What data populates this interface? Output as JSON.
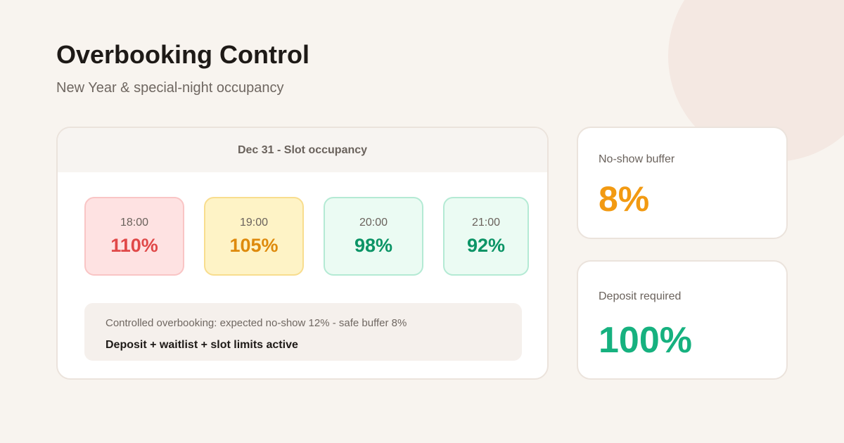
{
  "header": {
    "title": "Overbooking Control",
    "subtitle": "New Year & special-night occupancy"
  },
  "occupancy": {
    "title": "Dec 31 - Slot occupancy",
    "slots": [
      {
        "time": "18:00",
        "value": "110%",
        "status": "over"
      },
      {
        "time": "19:00",
        "value": "105%",
        "status": "warn"
      },
      {
        "time": "20:00",
        "value": "98%",
        "status": "ok"
      },
      {
        "time": "21:00",
        "value": "92%",
        "status": "ok"
      }
    ],
    "note": {
      "line": "Controlled overbooking: expected no-show 12% - safe buffer 8%",
      "emphasis": "Deposit + waitlist + slot limits active"
    }
  },
  "stats": {
    "buffer": {
      "label": "No-show buffer",
      "value": "8%"
    },
    "deposit": {
      "label": "Deposit required",
      "value": "100%"
    }
  },
  "colors": {
    "over": "#e04848",
    "warn": "#de8a0c",
    "ok": "#0b9466",
    "buffer_accent": "#f29a12",
    "deposit_accent": "#16b17f",
    "background": "#f8f4ef"
  }
}
